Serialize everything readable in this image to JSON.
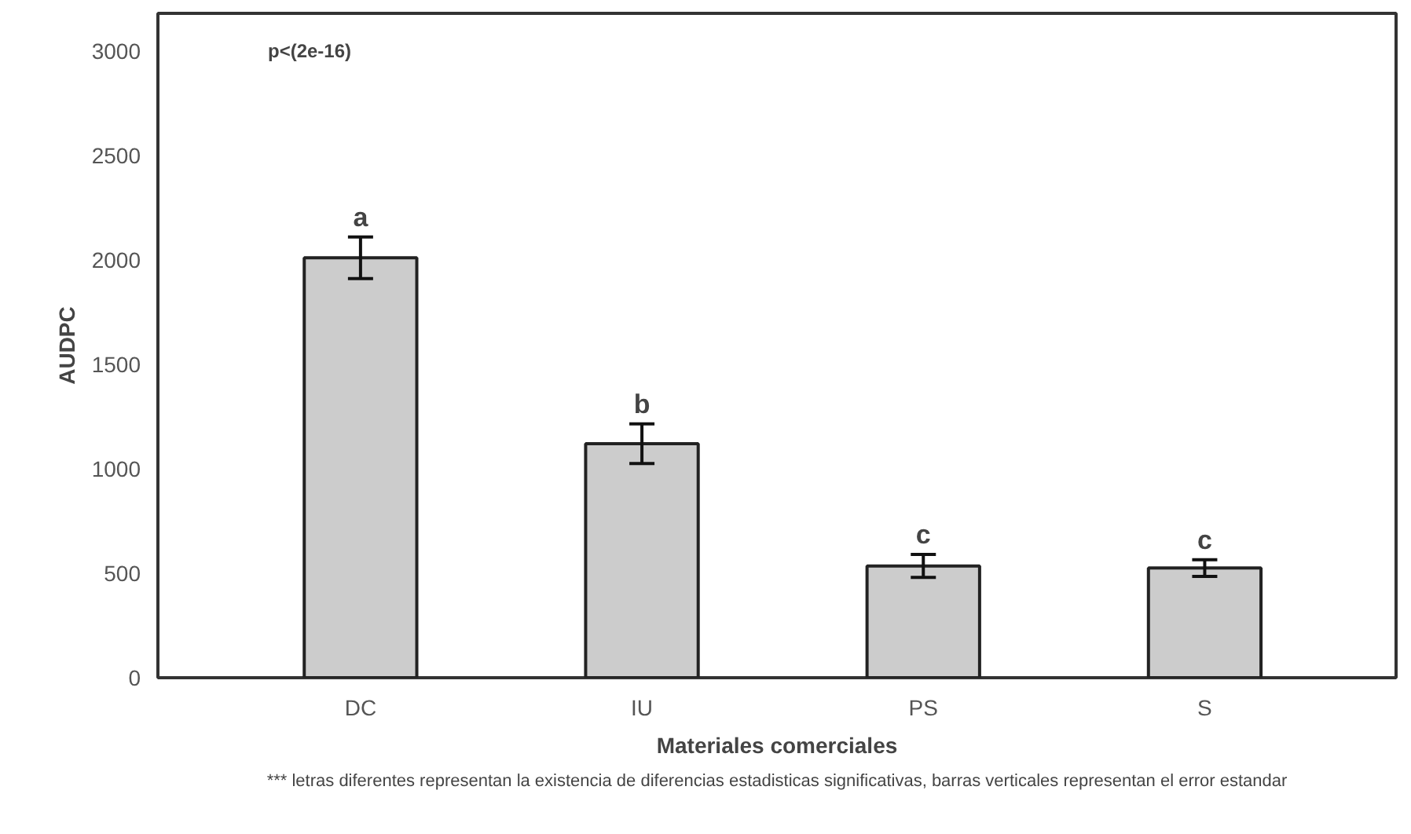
{
  "chart_data": {
    "type": "bar",
    "xlabel": "Materiales comerciales",
    "ylabel": "AUDPC",
    "categories": [
      "DC",
      "IU",
      "PS",
      "S"
    ],
    "values": [
      2010,
      1120,
      535,
      525
    ],
    "errors": [
      100,
      95,
      55,
      40
    ],
    "color": "#cccccc",
    "ylim": [
      0,
      3180
    ],
    "yticks": [
      0,
      500,
      1000,
      1500,
      2000,
      2500,
      3000
    ],
    "grid": false,
    "annotations": [
      "p<(2e-16)",
      {
        "text": "a",
        "x": "DC",
        "y": 2110
      },
      {
        "text": "b",
        "x": "IU",
        "y": 1215
      },
      {
        "text": "c",
        "x": "PS",
        "y": 590
      },
      {
        "text": "c",
        "x": "S",
        "y": 565
      },
      "*** letras diferentes representan la existencia de diferencias estadisticas significativas, barras verticales representan el error estandar"
    ]
  }
}
